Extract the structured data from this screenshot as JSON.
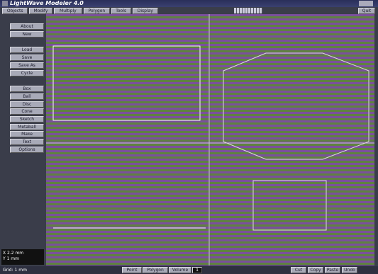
{
  "window": {
    "title": "LightWave Modeler 4.0",
    "tabs": [
      "Objects",
      "Modify",
      "Multiply",
      "Polygon",
      "Tools",
      "Display"
    ],
    "quit": "Quit"
  },
  "toolbar": {
    "groups": [
      [
        "About",
        "New"
      ],
      [
        "Load",
        "Save",
        "Save As",
        "Cycle"
      ],
      [
        "Box",
        "Ball",
        "Disc",
        "Cone",
        "Sketch",
        "Metaball",
        "Make",
        "Text",
        "Options"
      ]
    ]
  },
  "status": {
    "coords": [
      "X 2.2 mm",
      "Y 1 mm"
    ],
    "grid": "Grid: 1 mm"
  },
  "bottom_bar": {
    "modes": [
      "Point",
      "Polygon",
      "Volume"
    ],
    "count": "1",
    "actions": [
      "Cut",
      "Copy",
      "Paste",
      "Undo"
    ]
  }
}
